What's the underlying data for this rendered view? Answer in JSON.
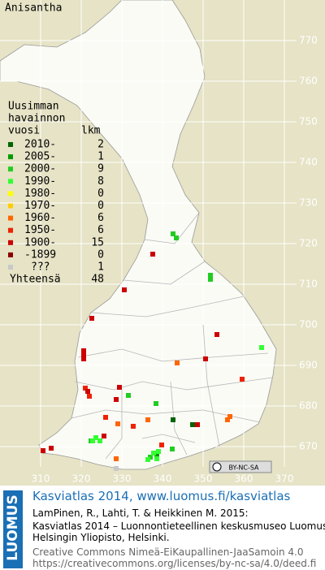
{
  "title": "Anisantha",
  "legend": {
    "header": [
      "Uusimman",
      "havainnon",
      "vuosi"
    ],
    "count_header": "lkm",
    "items": [
      {
        "label": "2010-",
        "count": 2,
        "color": "#006400"
      },
      {
        "label": "2005-",
        "count": 1,
        "color": "#009a00"
      },
      {
        "label": "2000-",
        "count": 9,
        "color": "#22cc22"
      },
      {
        "label": "1990-",
        "count": 8,
        "color": "#33ff33"
      },
      {
        "label": "1980-",
        "count": 0,
        "color": "#ffff00"
      },
      {
        "label": "1970-",
        "count": 0,
        "color": "#ffcc00"
      },
      {
        "label": "1960-",
        "count": 6,
        "color": "#ff6600"
      },
      {
        "label": "1950-",
        "count": 6,
        "color": "#ee2200"
      },
      {
        "label": "1900-",
        "count": 15,
        "color": "#cc0000"
      },
      {
        "label": "-1899",
        "count": 0,
        "color": "#880000"
      },
      {
        "label": "???",
        "count": 1,
        "color": "#c8c8c8"
      }
    ],
    "total_label": "Yhteensä",
    "total": 48
  },
  "xticks": [
    310,
    320,
    330,
    340,
    350,
    360,
    370
  ],
  "yticks": [
    670,
    680,
    690,
    700,
    710,
    720,
    730,
    740,
    750,
    760,
    770
  ],
  "license_badge": "BY-NC-SA",
  "footer": {
    "brand": "LUOMUS",
    "heading": "Kasviatlas 2014, www.luomus.fi/kasviatlas",
    "citation": [
      "LamPinen, R., Lahti, T. & Heikkinen M. 2015:",
      "Kasviatlas 2014 – Luonnontieteellinen keskusmuseo Luomus,",
      "Helsingin Yliopisto, Helsinki."
    ],
    "license": [
      "Creative Commons Nimeä-EiKaupallinen-JaaSamoin 4.0",
      "https://creativecommons.org/licenses/by-nc-sa/4.0/deed.fi"
    ]
  }
}
